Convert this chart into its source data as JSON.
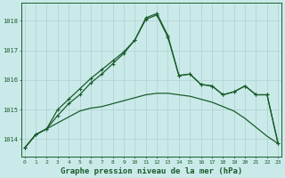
{
  "title": "Graphe pression niveau de la mer (hPa)",
  "background_color": "#caeaea",
  "grid_color": "#b0d0d0",
  "line_color": "#1a5c2a",
  "x_hours": [
    0,
    1,
    2,
    3,
    4,
    5,
    6,
    7,
    8,
    9,
    10,
    11,
    12,
    13,
    14,
    15,
    16,
    17,
    18,
    19,
    20,
    21,
    22,
    23
  ],
  "series_smooth": [
    1013.7,
    1014.15,
    1014.35,
    1014.55,
    1014.75,
    1014.95,
    1015.05,
    1015.1,
    1015.2,
    1015.3,
    1015.4,
    1015.5,
    1015.55,
    1015.55,
    1015.5,
    1015.45,
    1015.35,
    1015.25,
    1015.1,
    1014.95,
    1014.7,
    1014.4,
    1014.1,
    1013.85
  ],
  "series_mid": [
    1013.7,
    1014.15,
    1014.35,
    1014.8,
    1015.2,
    1015.5,
    1015.9,
    1016.2,
    1016.55,
    1016.9,
    1017.35,
    1018.05,
    1018.2,
    1017.45,
    1016.15,
    1016.2,
    1015.85,
    1015.8,
    1015.5,
    1015.6,
    1015.8,
    1015.5,
    1015.5,
    1013.85
  ],
  "series_top": [
    1013.7,
    1014.15,
    1014.35,
    1015.0,
    1015.35,
    1015.7,
    1016.05,
    1016.35,
    1016.65,
    1016.95,
    1017.35,
    1018.1,
    1018.25,
    1017.5,
    1016.15,
    1016.2,
    1015.85,
    1015.8,
    1015.5,
    1015.6,
    1015.8,
    1015.5,
    1015.5,
    1013.85
  ],
  "ylim": [
    1013.4,
    1018.6
  ],
  "yticks": [
    1014,
    1015,
    1016,
    1017,
    1018
  ],
  "marker": "+",
  "marker_size": 3.5,
  "linewidth": 0.9
}
